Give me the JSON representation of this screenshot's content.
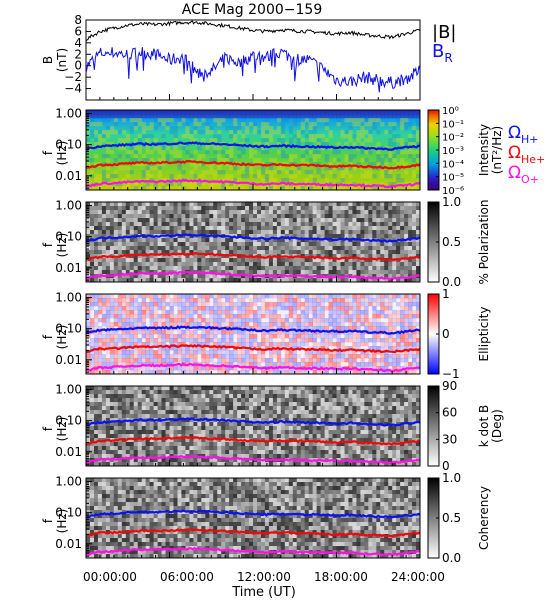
{
  "title": "ACE Mag 2000−159",
  "colors": {
    "total_field": "#000000",
    "radial_field": "#1010e0",
    "h_gyro": "#0a14ee",
    "he_gyro": "#ee0a0a",
    "o_gyro": "#ff10e6",
    "spectrogram_bg": "#6bd06b"
  },
  "legend": {
    "bmag": "|B|",
    "br": "B",
    "br_sub": "R",
    "omega_h": "Ω",
    "omega_h_sub": "H+",
    "omega_he": "Ω",
    "omega_he_sub": "He+",
    "omega_o": "Ω",
    "omega_o_sub": "O+"
  },
  "x_axis": {
    "label": "Time (UT)",
    "ticks": [
      "00:00:00",
      "06:00:00",
      "12:00:00",
      "18:00:00",
      "24:00:00"
    ]
  },
  "chart_data": [
    {
      "type": "line",
      "panel": "field",
      "ylabel": "B",
      "ylabel2": "(nT)",
      "ylim": [
        -6,
        8
      ],
      "yticks": [
        "8",
        "6",
        "4",
        "2",
        "0",
        "−2",
        "−4"
      ],
      "x": [
        0,
        1,
        2,
        3,
        4,
        5,
        6,
        7,
        8,
        9,
        10,
        11,
        12,
        13,
        14,
        15,
        16,
        17,
        18,
        19,
        20,
        21,
        22,
        23,
        24
      ],
      "series": [
        {
          "name": "|B|",
          "values": [
            4.6,
            6.0,
            6.6,
            7.1,
            7.3,
            7.2,
            7.4,
            7.6,
            7.6,
            7.3,
            7.0,
            6.6,
            6.2,
            6.0,
            6.3,
            6.1,
            6.0,
            5.8,
            5.6,
            5.8,
            5.4,
            5.2,
            5.0,
            5.6,
            6.2
          ]
        },
        {
          "name": "BR",
          "values": [
            -0.2,
            2.2,
            2.3,
            1.9,
            2.4,
            2.0,
            1.0,
            1.5,
            -1.2,
            -1.0,
            1.4,
            0.5,
            1.8,
            1.5,
            2.4,
            1.2,
            1.0,
            -0.5,
            -2.5,
            -2.8,
            -2.0,
            -2.5,
            -3.0,
            -2.2,
            -1.0
          ]
        }
      ]
    },
    {
      "type": "heatmap",
      "panel": "intensity",
      "ylabel": "f",
      "ylabel2": "(Hz)",
      "yscale": "log",
      "yticks": [
        "1.00",
        "0.10",
        "0.01"
      ],
      "colorbar": {
        "label": "Intensity",
        "label2": "(nT²/Hz)",
        "ticks": [
          "10⁰",
          "10⁻¹",
          "10⁻²",
          "10⁻³",
          "10⁻⁴",
          "10⁻⁵",
          "10⁻⁶"
        ]
      }
    },
    {
      "type": "heatmap",
      "panel": "polarization",
      "ylabel": "f",
      "ylabel2": "(Hz)",
      "yscale": "log",
      "yticks": [
        "1.00",
        "0.10",
        "0.01"
      ],
      "colorbar": {
        "label": "% Polarization",
        "label2": "",
        "ticks": [
          "1.0",
          "0.5",
          "0.0"
        ]
      }
    },
    {
      "type": "heatmap",
      "panel": "ellipticity",
      "ylabel": "f",
      "ylabel2": "(Hz)",
      "yscale": "log",
      "yticks": [
        "1.00",
        "0.10",
        "0.01"
      ],
      "colorbar": {
        "label": "Ellipticity",
        "label2": "",
        "ticks": [
          "1",
          "0",
          "−1"
        ]
      }
    },
    {
      "type": "heatmap",
      "panel": "kdotb",
      "ylabel": "f",
      "ylabel2": "(Hz)",
      "yscale": "log",
      "yticks": [
        "1.00",
        "0.10",
        "0.01"
      ],
      "colorbar": {
        "label": "k dot B",
        "label2": "(Deg)",
        "ticks": [
          "90",
          "60",
          "30",
          "0"
        ]
      }
    },
    {
      "type": "heatmap",
      "panel": "coherency",
      "ylabel": "f",
      "ylabel2": "(Hz)",
      "yscale": "log",
      "yticks": [
        "1.00",
        "0.10",
        "0.01"
      ],
      "colorbar": {
        "label": "Coherency",
        "label2": "",
        "ticks": [
          "1.0",
          "0.5",
          "0.0"
        ]
      }
    }
  ],
  "gyrofrequency_data": {
    "x": [
      0,
      1,
      2,
      3,
      4,
      5,
      6,
      7,
      8,
      9,
      10,
      11,
      12,
      13,
      14,
      15,
      16,
      17,
      18,
      19,
      20,
      21,
      22,
      23,
      24
    ],
    "H+": [
      0.072,
      0.09,
      0.093,
      0.1,
      0.105,
      0.104,
      0.108,
      0.112,
      0.112,
      0.106,
      0.102,
      0.096,
      0.09,
      0.087,
      0.092,
      0.089,
      0.087,
      0.084,
      0.081,
      0.084,
      0.078,
      0.075,
      0.072,
      0.081,
      0.09
    ],
    "He+": [
      0.018,
      0.0225,
      0.023,
      0.025,
      0.026,
      0.026,
      0.027,
      0.028,
      0.028,
      0.0265,
      0.0255,
      0.024,
      0.0225,
      0.022,
      0.023,
      0.022,
      0.022,
      0.021,
      0.02,
      0.021,
      0.0195,
      0.019,
      0.018,
      0.02,
      0.0225
    ],
    "O+": [
      0.0045,
      0.0056,
      0.0058,
      0.0063,
      0.0066,
      0.0065,
      0.0067,
      0.007,
      0.007,
      0.0066,
      0.0064,
      0.006,
      0.0056,
      0.0054,
      0.0057,
      0.0055,
      0.0054,
      0.0053,
      0.0051,
      0.0052,
      0.0049,
      0.0047,
      0.0045,
      0.005,
      0.0056
    ]
  }
}
